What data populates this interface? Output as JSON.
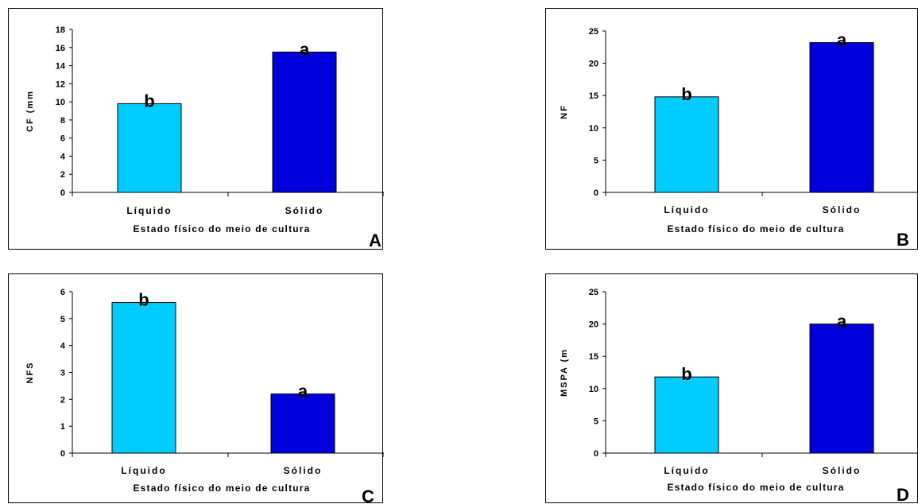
{
  "colors": {
    "liquido": "#00CCFF",
    "solido": "#0000DD",
    "axis": "#000000"
  },
  "chart_data": [
    {
      "type": "bar",
      "panel_label": "A",
      "categories": [
        "Líquido",
        "Sólido"
      ],
      "values": [
        9.8,
        15.5
      ],
      "letters": [
        "b",
        "a"
      ],
      "ylabel": "CF (mm",
      "xlabel": "Estado físico do meio de cultura",
      "ylim": [
        0,
        18
      ],
      "yticks": [
        0,
        2,
        4,
        6,
        8,
        10,
        12,
        14,
        16,
        18
      ]
    },
    {
      "type": "bar",
      "panel_label": "B",
      "categories": [
        "Líquido",
        "Sólido"
      ],
      "values": [
        14.8,
        23.2
      ],
      "letters": [
        "b",
        "a"
      ],
      "ylabel": "NF",
      "xlabel": "Estado físico do meio de cultura",
      "ylim": [
        0,
        25
      ],
      "yticks": [
        0,
        5,
        10,
        15,
        20,
        25
      ]
    },
    {
      "type": "bar",
      "panel_label": "C",
      "categories": [
        "Líquido",
        "Sólido"
      ],
      "values": [
        5.6,
        2.2
      ],
      "letters": [
        "b",
        "a"
      ],
      "ylabel": "NFS",
      "xlabel": "Estado físico do meio de cultura",
      "ylim": [
        0,
        6
      ],
      "yticks": [
        0,
        1,
        2,
        3,
        4,
        5,
        6
      ]
    },
    {
      "type": "bar",
      "panel_label": "D",
      "categories": [
        "Líquido",
        "Sólido"
      ],
      "values": [
        11.8,
        20.0
      ],
      "letters": [
        "b",
        "a"
      ],
      "ylabel": "MSPA (m",
      "xlabel": "Estado físico do meio de cultura",
      "ylim": [
        0,
        25
      ],
      "yticks": [
        0,
        5,
        10,
        15,
        20,
        25
      ]
    }
  ]
}
